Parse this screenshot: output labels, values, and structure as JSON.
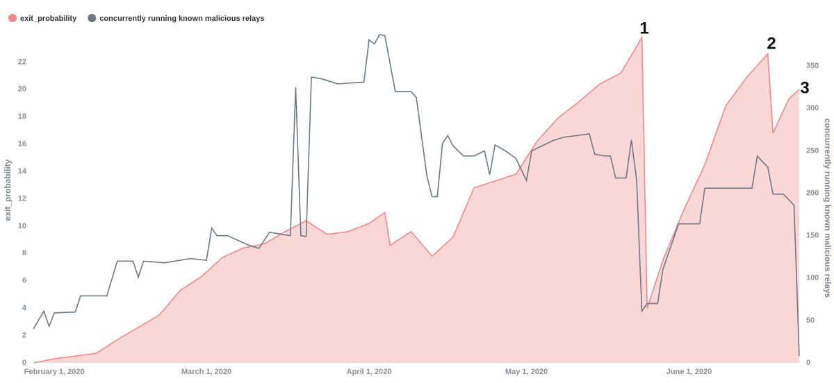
{
  "chart_data": {
    "type": "area-line",
    "legend": "top-left",
    "ylabel": "exit_probability",
    "y2label": "concurrently running known malicious relays",
    "xlim": [
      "2020-01-28",
      "2020-06-22"
    ],
    "xticks": [
      {
        "value": "2020-02-01",
        "label": "February 1, 2020"
      },
      {
        "value": "2020-03-01",
        "label": "March 1, 2020"
      },
      {
        "value": "2020-04-01",
        "label": "April 1, 2020"
      },
      {
        "value": "2020-05-01",
        "label": "May 1, 2020"
      },
      {
        "value": "2020-06-01",
        "label": "June 1, 2020"
      }
    ],
    "ylim": [
      0,
      24
    ],
    "yticks": [
      0,
      2,
      4,
      6,
      8,
      10,
      12,
      14,
      16,
      18,
      20,
      22
    ],
    "y2lim": [
      0,
      387
    ],
    "y2ticks": [
      0,
      50,
      100,
      150,
      200,
      250,
      300,
      350
    ],
    "annotations": [
      "1",
      "2",
      "3"
    ],
    "series": [
      {
        "name": "exit_probability",
        "color": "#f08a8a",
        "fill": "#f9d7d7",
        "style": "area",
        "x": [
          "2020-01-28",
          "2020-02-01",
          "2020-02-05",
          "2020-02-09",
          "2020-02-13",
          "2020-02-17",
          "2020-02-21",
          "2020-02-25",
          "2020-02-29",
          "2020-03-04",
          "2020-03-08",
          "2020-03-12",
          "2020-03-16",
          "2020-03-20",
          "2020-03-24",
          "2020-03-28",
          "2020-04-01",
          "2020-04-04",
          "2020-04-05",
          "2020-04-09",
          "2020-04-13",
          "2020-04-17",
          "2020-04-21",
          "2020-04-25",
          "2020-04-29",
          "2020-05-03",
          "2020-05-07",
          "2020-05-11",
          "2020-05-15",
          "2020-05-19",
          "2020-05-23",
          "2020-05-24",
          "2020-05-27",
          "2020-05-31",
          "2020-06-04",
          "2020-06-08",
          "2020-06-12",
          "2020-06-16",
          "2020-06-17",
          "2020-06-20",
          "2020-06-22"
        ],
        "values": [
          0,
          0.3,
          0.5,
          0.7,
          1.7,
          2.6,
          3.5,
          5.3,
          6.3,
          7.7,
          8.4,
          8.7,
          9.6,
          10.4,
          9.4,
          9.6,
          10.2,
          11.0,
          8.6,
          9.6,
          7.8,
          9.2,
          12.8,
          13.3,
          13.8,
          16.2,
          17.9,
          19.1,
          20.4,
          21.2,
          23.8,
          4.0,
          7.5,
          11.2,
          14.5,
          18.8,
          20.9,
          22.6,
          16.8,
          19.3,
          20.0
        ]
      },
      {
        "name": "concurrently running known malicious relays",
        "color": "#6b7885",
        "style": "line",
        "axis": "y2",
        "x": [
          "2020-01-28",
          "2020-01-30",
          "2020-01-31",
          "2020-02-01",
          "2020-02-05",
          "2020-02-06",
          "2020-02-11",
          "2020-02-13",
          "2020-02-16",
          "2020-02-17",
          "2020-02-18",
          "2020-02-22",
          "2020-02-27",
          "2020-03-01",
          "2020-03-02",
          "2020-03-03",
          "2020-03-05",
          "2020-03-09",
          "2020-03-11",
          "2020-03-13",
          "2020-03-17",
          "2020-03-18",
          "2020-03-19",
          "2020-03-20",
          "2020-03-21",
          "2020-03-23",
          "2020-03-26",
          "2020-03-31",
          "2020-04-01",
          "2020-04-02",
          "2020-04-03",
          "2020-04-04",
          "2020-04-06",
          "2020-04-09",
          "2020-04-10",
          "2020-04-12",
          "2020-04-13",
          "2020-04-14",
          "2020-04-15",
          "2020-04-16",
          "2020-04-17",
          "2020-04-19",
          "2020-04-21",
          "2020-04-23",
          "2020-04-24",
          "2020-04-25",
          "2020-04-27",
          "2020-04-29",
          "2020-05-01",
          "2020-05-02",
          "2020-05-06",
          "2020-05-08",
          "2020-05-13",
          "2020-05-14",
          "2020-05-16",
          "2020-05-17",
          "2020-05-18",
          "2020-05-20",
          "2020-05-21",
          "2020-05-22",
          "2020-05-23",
          "2020-05-24",
          "2020-05-26",
          "2020-05-27",
          "2020-05-28",
          "2020-05-30",
          "2020-06-03",
          "2020-06-04",
          "2020-06-13",
          "2020-06-14",
          "2020-06-15",
          "2020-06-16",
          "2020-06-17",
          "2020-06-19",
          "2020-06-21",
          "2020-06-22"
        ],
        "values": [
          40,
          61,
          43,
          59,
          60,
          79,
          79,
          120,
          120,
          101,
          120,
          118,
          123,
          121,
          159,
          150,
          150,
          139,
          135,
          154,
          150,
          325,
          150,
          149,
          337,
          335,
          329,
          331,
          381,
          376,
          387,
          386,
          320,
          320,
          313,
          221,
          196,
          196,
          259,
          268,
          256,
          244,
          244,
          250,
          222,
          257,
          250,
          241,
          215,
          250,
          262,
          266,
          270,
          246,
          244,
          244,
          218,
          218,
          263,
          216,
          61,
          70,
          70,
          110,
          128,
          164,
          164,
          206,
          206,
          244,
          237,
          231,
          199,
          199,
          186,
          8
        ]
      }
    ]
  }
}
